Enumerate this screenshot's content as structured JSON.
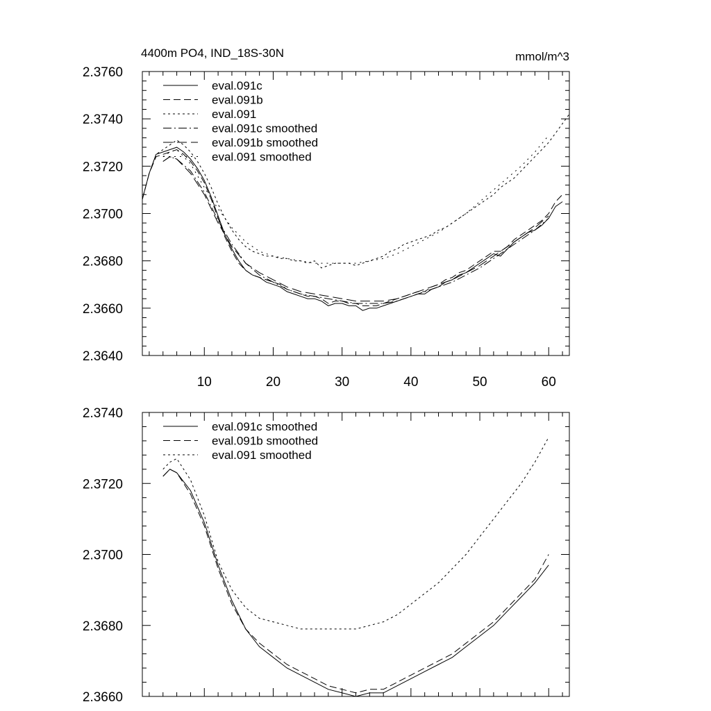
{
  "chart_data": [
    {
      "type": "line",
      "title_left": "4400m PO4, IND_18S-30N",
      "title_right": "mmol/m^3",
      "xlabel": "",
      "ylabel": "",
      "xlim": [
        1,
        63
      ],
      "ylim": [
        2.364,
        2.376
      ],
      "xticks": [
        10,
        20,
        30,
        40,
        50,
        60
      ],
      "xtick_labels": [
        "10",
        "20",
        "30",
        "40",
        "50",
        "60"
      ],
      "yticks": [
        2.364,
        2.366,
        2.368,
        2.37,
        2.372,
        2.374,
        2.376
      ],
      "ytick_labels": [
        "2.3640",
        "2.3660",
        "2.3680",
        "2.3700",
        "2.3720",
        "2.3740",
        "2.3760"
      ],
      "legend_position": "top-left",
      "series": [
        {
          "name": "eval.091c",
          "dash": "solid",
          "x": [
            1,
            2,
            3,
            4,
            5,
            6,
            7,
            8,
            9,
            10,
            11,
            12,
            13,
            14,
            15,
            16,
            17,
            18,
            19,
            20,
            21,
            22,
            23,
            24,
            25,
            26,
            27,
            28,
            29,
            30,
            31,
            32,
            33,
            34,
            35,
            36,
            37,
            38,
            39,
            40,
            41,
            42,
            43,
            44,
            45,
            46,
            47,
            48,
            49,
            50,
            51,
            52,
            53,
            54,
            55,
            56,
            57,
            58,
            59,
            60,
            61,
            62
          ],
          "values": [
            2.3706,
            2.3717,
            2.3725,
            2.3726,
            2.3727,
            2.3728,
            2.3726,
            2.3723,
            2.3719,
            2.3714,
            2.3707,
            2.3699,
            2.3691,
            2.3685,
            2.368,
            2.3676,
            2.3674,
            2.3673,
            2.3671,
            2.367,
            2.3669,
            2.3667,
            2.3666,
            2.3665,
            2.3664,
            2.3664,
            2.3663,
            2.3661,
            2.3662,
            2.3662,
            2.3661,
            2.3661,
            2.3659,
            2.366,
            2.366,
            2.3661,
            2.3662,
            2.3663,
            2.3664,
            2.3665,
            2.3666,
            2.3666,
            2.3668,
            2.3669,
            2.3671,
            2.3672,
            2.3674,
            2.3675,
            2.3677,
            2.3679,
            2.3681,
            2.3683,
            2.3682,
            2.3685,
            2.3688,
            2.369,
            2.3692,
            2.3693,
            2.3695,
            2.3698,
            2.3703,
            2.3705
          ]
        },
        {
          "name": "eval.091b",
          "dash": "dashed",
          "x": [
            1,
            2,
            3,
            4,
            5,
            6,
            7,
            8,
            9,
            10,
            11,
            12,
            13,
            14,
            15,
            16,
            17,
            18,
            19,
            20,
            21,
            22,
            23,
            24,
            25,
            26,
            27,
            28,
            29,
            30,
            31,
            32,
            33,
            34,
            35,
            36,
            37,
            38,
            39,
            40,
            41,
            42,
            43,
            44,
            45,
            46,
            47,
            48,
            49,
            50,
            51,
            52,
            53,
            54,
            55,
            56,
            57,
            58,
            59,
            60,
            61,
            62
          ],
          "values": [
            2.3706,
            2.3717,
            2.3724,
            2.3725,
            2.3726,
            2.3727,
            2.3725,
            2.3722,
            2.3718,
            2.3713,
            2.3706,
            2.3698,
            2.369,
            2.3684,
            2.3679,
            2.3676,
            2.3674,
            2.3673,
            2.3672,
            2.3671,
            2.367,
            2.3668,
            2.3667,
            2.3666,
            2.3665,
            2.3665,
            2.3664,
            2.3662,
            2.3663,
            2.3663,
            2.3662,
            2.3662,
            2.3661,
            2.3661,
            2.3661,
            2.3662,
            2.3663,
            2.3664,
            2.3665,
            2.3666,
            2.3667,
            2.3667,
            2.3669,
            2.367,
            2.3672,
            2.3673,
            2.3675,
            2.3676,
            2.3678,
            2.368,
            2.3682,
            2.3684,
            2.3684,
            2.3686,
            2.3689,
            2.3691,
            2.3693,
            2.3695,
            2.3697,
            2.37,
            2.3705,
            2.3708
          ]
        },
        {
          "name": "eval.091",
          "dash": "dotted",
          "x": [
            1,
            2,
            3,
            4,
            5,
            6,
            7,
            8,
            9,
            10,
            11,
            12,
            13,
            14,
            15,
            16,
            17,
            18,
            19,
            20,
            21,
            22,
            23,
            24,
            25,
            26,
            27,
            28,
            29,
            30,
            31,
            32,
            33,
            34,
            35,
            36,
            37,
            38,
            39,
            40,
            41,
            42,
            43,
            44,
            45,
            46,
            47,
            48,
            49,
            50,
            51,
            52,
            53,
            54,
            55,
            56,
            57,
            58,
            59,
            60,
            61,
            62,
            63
          ],
          "values": [
            2.3706,
            2.3717,
            2.3725,
            2.3727,
            2.3729,
            2.3731,
            2.3729,
            2.3726,
            2.3722,
            2.3717,
            2.3711,
            2.3704,
            2.3698,
            2.3693,
            2.3689,
            2.3686,
            2.3684,
            2.3683,
            2.3682,
            2.3682,
            2.3681,
            2.3681,
            2.368,
            2.368,
            2.3679,
            2.368,
            2.3677,
            2.3678,
            2.3679,
            2.3679,
            2.3679,
            2.3678,
            2.3679,
            2.368,
            2.3681,
            2.3682,
            2.3684,
            2.3685,
            2.3687,
            2.3688,
            2.3689,
            2.369,
            2.3691,
            2.3693,
            2.3694,
            2.3696,
            2.3698,
            2.37,
            2.3702,
            2.3704,
            2.3706,
            2.3708,
            2.3711,
            2.3713,
            2.3715,
            2.3718,
            2.3721,
            2.3724,
            2.3727,
            2.373,
            2.3734,
            2.3738,
            2.3742
          ]
        },
        {
          "name": "eval.091c smoothed",
          "dash": "dashdot",
          "x": [
            4,
            5,
            6,
            8,
            10,
            12,
            14,
            16,
            18,
            20,
            22,
            24,
            26,
            28,
            30,
            32,
            34,
            36,
            38,
            40,
            42,
            44,
            46,
            48,
            50,
            52,
            54,
            56,
            58,
            60
          ],
          "values": [
            2.3722,
            2.3724,
            2.3723,
            2.3718,
            2.3709,
            2.3697,
            2.3687,
            2.3679,
            2.3674,
            2.3671,
            2.3668,
            2.3666,
            2.3665,
            2.3664,
            2.3663,
            2.3662,
            2.3662,
            2.3662,
            2.3663,
            2.3665,
            2.3667,
            2.3669,
            2.3671,
            2.3674,
            2.3677,
            2.3681,
            2.3685,
            2.3689,
            2.3693,
            2.3698
          ]
        },
        {
          "name": "eval.091b smoothed",
          "dash": "longdash",
          "x": [
            4,
            5,
            6,
            8,
            10,
            12,
            14,
            16,
            18,
            20,
            22,
            24,
            26,
            28,
            30,
            32,
            34,
            36,
            38,
            40,
            42,
            44,
            46,
            48,
            50,
            52,
            54,
            56,
            58,
            60
          ],
          "values": [
            2.3722,
            2.3724,
            2.3723,
            2.3717,
            2.3708,
            2.3696,
            2.3686,
            2.3679,
            2.3675,
            2.3672,
            2.3669,
            2.3667,
            2.3666,
            2.3665,
            2.3664,
            2.3663,
            2.3663,
            2.3663,
            2.3664,
            2.3666,
            2.3668,
            2.367,
            2.3672,
            2.3675,
            2.3678,
            2.3682,
            2.3686,
            2.369,
            2.3694,
            2.3699
          ]
        },
        {
          "name": "eval.091 smoothed",
          "dash": "sparse-dot",
          "x": [
            4,
            5,
            6,
            8,
            10,
            12,
            14,
            16,
            18,
            20,
            22,
            24,
            26,
            28,
            30,
            32,
            34,
            36,
            38,
            40,
            42,
            44,
            46,
            48,
            50,
            52,
            54,
            56,
            58,
            60
          ],
          "values": [
            2.3724,
            2.3726,
            2.3727,
            2.3721,
            2.3711,
            2.3702,
            2.3694,
            2.3688,
            2.3684,
            2.3682,
            2.3681,
            2.368,
            2.3679,
            2.3679,
            2.3679,
            2.3679,
            2.368,
            2.3681,
            2.3683,
            2.3686,
            2.3689,
            2.3692,
            2.3696,
            2.37,
            2.3705,
            2.371,
            2.3715,
            2.372,
            2.3726,
            2.3733
          ]
        }
      ]
    },
    {
      "type": "line",
      "xlim": [
        1,
        63
      ],
      "ylim": [
        2.366,
        2.374
      ],
      "xticks": [
        10,
        20,
        30,
        40,
        50,
        60
      ],
      "yticks": [
        2.366,
        2.368,
        2.37,
        2.372,
        2.374
      ],
      "ytick_labels": [
        "2.3660",
        "2.3680",
        "2.3700",
        "2.3720",
        "2.3740"
      ],
      "legend_position": "top-left",
      "series": [
        {
          "name": "eval.091c smoothed",
          "dash": "solid",
          "x": [
            4,
            5,
            6,
            8,
            10,
            12,
            14,
            16,
            18,
            20,
            22,
            24,
            26,
            28,
            30,
            32,
            34,
            36,
            38,
            40,
            42,
            44,
            46,
            48,
            50,
            52,
            54,
            56,
            58,
            60
          ],
          "values": [
            2.3722,
            2.3724,
            2.3723,
            2.3718,
            2.3709,
            2.3697,
            2.3687,
            2.3679,
            2.3674,
            2.3671,
            2.3668,
            2.3666,
            2.3664,
            2.3662,
            2.3661,
            2.366,
            2.3661,
            2.3661,
            2.3663,
            2.3665,
            2.3667,
            2.3669,
            2.3671,
            2.3674,
            2.3677,
            2.368,
            2.3684,
            2.3688,
            2.3692,
            2.3697
          ]
        },
        {
          "name": "eval.091b smoothed",
          "dash": "dashed",
          "x": [
            4,
            5,
            6,
            8,
            10,
            12,
            14,
            16,
            18,
            20,
            22,
            24,
            26,
            28,
            30,
            32,
            34,
            36,
            38,
            40,
            42,
            44,
            46,
            48,
            50,
            52,
            54,
            56,
            58,
            60
          ],
          "values": [
            2.3722,
            2.3724,
            2.3723,
            2.3717,
            2.3708,
            2.3696,
            2.3686,
            2.3679,
            2.3675,
            2.3672,
            2.3669,
            2.3667,
            2.3665,
            2.3663,
            2.3662,
            2.3661,
            2.3662,
            2.3662,
            2.3664,
            2.3666,
            2.3668,
            2.367,
            2.3672,
            2.3675,
            2.3678,
            2.3681,
            2.3685,
            2.3689,
            2.3693,
            2.37
          ]
        },
        {
          "name": "eval.091 smoothed",
          "dash": "dotted",
          "x": [
            4,
            5,
            6,
            8,
            10,
            12,
            14,
            16,
            18,
            20,
            22,
            24,
            26,
            28,
            30,
            32,
            34,
            36,
            38,
            40,
            42,
            44,
            46,
            48,
            50,
            52,
            54,
            56,
            58,
            60
          ],
          "values": [
            2.3724,
            2.3726,
            2.3727,
            2.3721,
            2.3711,
            2.3698,
            2.369,
            2.3685,
            2.3682,
            2.3681,
            2.368,
            2.3679,
            2.3679,
            2.3679,
            2.3679,
            2.3679,
            2.368,
            2.3681,
            2.3683,
            2.3686,
            2.3689,
            2.3692,
            2.3696,
            2.37,
            2.3705,
            2.371,
            2.3715,
            2.372,
            2.3726,
            2.3733
          ]
        }
      ]
    }
  ]
}
